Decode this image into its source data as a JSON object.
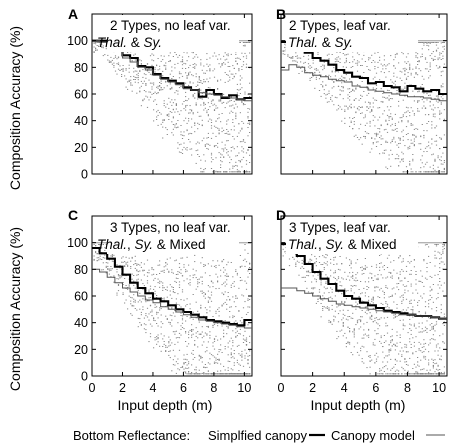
{
  "figure": {
    "y_axis_label": "Composition Accuracy (%)",
    "x_axis_label": "Input depth (m)",
    "legend": {
      "prefix": "Bottom Reflectance:",
      "items": [
        {
          "label": "Simplfied canopy",
          "style": "thick"
        },
        {
          "label": "Canopy model",
          "style": "thin"
        }
      ]
    },
    "colors": {
      "thick": "#000000",
      "thin": "#555555",
      "ref_line": "#b3b3b3",
      "dots": "#888888"
    }
  },
  "chart_data": [
    {
      "type": "line",
      "panel": "A",
      "title_line1": "2 Types, no leaf var.",
      "title_line2_parts": [
        {
          "text": "Thal.",
          "italic": true
        },
        {
          "text": " & ",
          "italic": false
        },
        {
          "text": "Sy.",
          "italic": true
        }
      ],
      "xlim": [
        0,
        10.5
      ],
      "ylim": [
        0,
        120
      ],
      "xticks": [
        0,
        2,
        4,
        6,
        8,
        10
      ],
      "yticks": [
        0,
        20,
        40,
        60,
        80,
        100
      ],
      "reference_line": 100,
      "series": [
        {
          "name": "Simplfied canopy",
          "style": "thick",
          "x": [
            0,
            0.5,
            1,
            1.5,
            2,
            2.5,
            3,
            3.5,
            4,
            4.5,
            5,
            5.5,
            6,
            6.5,
            7,
            7.5,
            8,
            8.5,
            9,
            9.5,
            10
          ],
          "y": [
            100,
            100,
            97,
            95,
            89,
            87,
            81,
            80,
            75,
            72,
            70,
            68,
            65,
            63,
            58,
            63,
            60,
            57,
            59,
            56,
            57
          ]
        },
        {
          "name": "Canopy model",
          "style": "thin",
          "x": [
            0,
            0.5,
            1,
            1.5,
            2,
            2.5,
            3,
            3.5,
            4,
            4.5,
            5,
            5.5,
            6,
            6.5,
            7,
            7.5,
            8,
            8.5,
            9,
            9.5,
            10
          ],
          "y": [
            100,
            99,
            97,
            92,
            87,
            84,
            80,
            78,
            74,
            71,
            69,
            67,
            64,
            63,
            61,
            60,
            59,
            58,
            57,
            56,
            55
          ]
        }
      ]
    },
    {
      "type": "line",
      "panel": "B",
      "title_line1": "2 Types, leaf var.",
      "title_line2_parts": [
        {
          "text": "Thal.",
          "italic": true
        },
        {
          "text": " & ",
          "italic": false
        },
        {
          "text": "Sy.",
          "italic": true
        }
      ],
      "xlim": [
        0,
        10.5
      ],
      "ylim": [
        0,
        120
      ],
      "xticks": [
        0,
        2,
        4,
        6,
        8,
        10
      ],
      "yticks": [
        0,
        20,
        40,
        60,
        80,
        100
      ],
      "reference_line": 100,
      "series": [
        {
          "name": "Simplfied canopy",
          "style": "thick",
          "x": [
            0,
            0.5,
            1,
            1.5,
            2,
            2.5,
            3,
            3.5,
            4,
            4.5,
            5,
            5.5,
            6,
            6.5,
            7,
            7.5,
            8,
            8.5,
            9,
            9.5,
            10
          ],
          "y": [
            99,
            96,
            93,
            91,
            87,
            85,
            82,
            78,
            76,
            73,
            72,
            68,
            69,
            66,
            65,
            62,
            66,
            64,
            62,
            63,
            60
          ]
        },
        {
          "name": "Canopy model",
          "style": "thin",
          "x": [
            0,
            0.5,
            1,
            1.5,
            2,
            2.5,
            3,
            3.5,
            4,
            4.5,
            5,
            5.5,
            6,
            6.5,
            7,
            7.5,
            8,
            8.5,
            9,
            9.5,
            10
          ],
          "y": [
            78,
            82,
            80,
            76,
            74,
            73,
            71,
            70,
            69,
            66,
            65,
            63,
            62,
            61,
            60,
            59,
            58,
            58,
            57,
            56,
            55
          ]
        }
      ]
    },
    {
      "type": "line",
      "panel": "C",
      "title_line1": "3 Types, no leaf var.",
      "title_line2_parts": [
        {
          "text": "Thal.",
          "italic": true
        },
        {
          "text": ", ",
          "italic": false
        },
        {
          "text": "Sy.",
          "italic": true
        },
        {
          "text": " & Mixed",
          "italic": false
        }
      ],
      "xlim": [
        0,
        10.5
      ],
      "ylim": [
        0,
        120
      ],
      "xticks": [
        0,
        2,
        4,
        6,
        8,
        10
      ],
      "yticks": [
        0,
        20,
        40,
        60,
        80,
        100
      ],
      "reference_line": 100,
      "series": [
        {
          "name": "Simplfied canopy",
          "style": "thick",
          "x": [
            0,
            0.5,
            1,
            1.5,
            2,
            2.5,
            3,
            3.5,
            4,
            4.5,
            5,
            5.5,
            6,
            6.5,
            7,
            7.5,
            8,
            8.5,
            9,
            9.5,
            10
          ],
          "y": [
            96,
            92,
            88,
            82,
            76,
            70,
            66,
            62,
            58,
            56,
            53,
            50,
            48,
            46,
            44,
            42,
            41,
            40,
            39,
            38,
            42
          ]
        },
        {
          "name": "Canopy model",
          "style": "thin",
          "x": [
            0,
            0.5,
            1,
            1.5,
            2,
            2.5,
            3,
            3.5,
            4,
            4.5,
            5,
            5.5,
            6,
            6.5,
            7,
            7.5,
            8,
            8.5,
            9,
            9.5,
            10
          ],
          "y": [
            80,
            78,
            74,
            70,
            66,
            63,
            60,
            57,
            55,
            52,
            50,
            48,
            46,
            44,
            42,
            41,
            40,
            39,
            38,
            37,
            36
          ]
        }
      ]
    },
    {
      "type": "line",
      "panel": "D",
      "title_line1": "3 Types, leaf var.",
      "title_line2_parts": [
        {
          "text": "Thal.",
          "italic": true
        },
        {
          "text": ", ",
          "italic": false
        },
        {
          "text": "Sy.",
          "italic": true
        },
        {
          "text": " & Mixed",
          "italic": false
        }
      ],
      "xlim": [
        0,
        10.5
      ],
      "ylim": [
        0,
        120
      ],
      "xticks": [
        0,
        2,
        4,
        6,
        8,
        10
      ],
      "yticks": [
        0,
        20,
        40,
        60,
        80,
        100
      ],
      "reference_line": 100,
      "series": [
        {
          "name": "Simplfied canopy",
          "style": "thick",
          "x": [
            0,
            0.5,
            1,
            1.5,
            2,
            2.5,
            3,
            3.5,
            4,
            4.5,
            5,
            5.5,
            6,
            6.5,
            7,
            7.5,
            8,
            8.5,
            9,
            9.5,
            10
          ],
          "y": [
            99,
            94,
            90,
            84,
            78,
            73,
            69,
            64,
            60,
            58,
            55,
            53,
            51,
            49,
            48,
            47,
            46,
            45,
            45,
            44,
            43
          ]
        },
        {
          "name": "Canopy model",
          "style": "thin",
          "x": [
            0,
            0.5,
            1,
            1.5,
            2,
            2.5,
            3,
            3.5,
            4,
            4.5,
            5,
            5.5,
            6,
            6.5,
            7,
            7.5,
            8,
            8.5,
            9,
            9.5,
            10
          ],
          "y": [
            66,
            66,
            64,
            62,
            60,
            58,
            56,
            54,
            53,
            52,
            51,
            50,
            49,
            48,
            47,
            46,
            46,
            45,
            45,
            44,
            43
          ]
        }
      ]
    }
  ]
}
